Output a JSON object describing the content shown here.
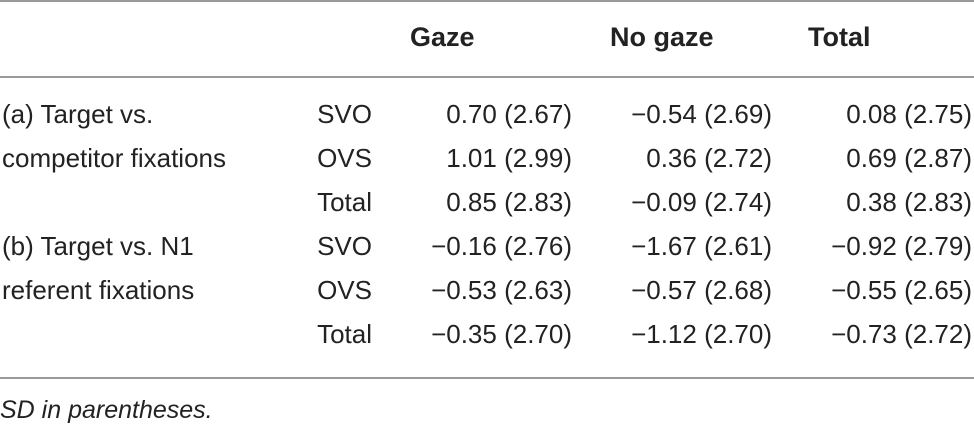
{
  "table": {
    "headers": [
      "Gaze",
      "No gaze",
      "Total"
    ],
    "rows": [
      {
        "group": "(a) Target vs.",
        "condition": "SVO",
        "values": [
          "0.70 (2.67)",
          "−0.54 (2.69)",
          "0.08 (2.75)"
        ]
      },
      {
        "group": "competitor fixations",
        "condition": "OVS",
        "values": [
          "1.01 (2.99)",
          "0.36 (2.72)",
          "0.69 (2.87)"
        ]
      },
      {
        "group": "",
        "condition": "Total",
        "values": [
          "0.85 (2.83)",
          "−0.09 (2.74)",
          "0.38 (2.83)"
        ]
      },
      {
        "group": "(b) Target vs. N1",
        "condition": "SVO",
        "values": [
          "−0.16 (2.76)",
          "−1.67 (2.61)",
          "−0.92 (2.79)"
        ]
      },
      {
        "group": "referent fixations",
        "condition": "OVS",
        "values": [
          "−0.53 (2.63)",
          "−0.57 (2.68)",
          "−0.55 (2.65)"
        ]
      },
      {
        "group": "",
        "condition": "Total",
        "values": [
          "−0.35 (2.70)",
          "−1.12 (2.70)",
          "−0.73 (2.72)"
        ]
      }
    ],
    "footnote": "SD in parentheses."
  }
}
